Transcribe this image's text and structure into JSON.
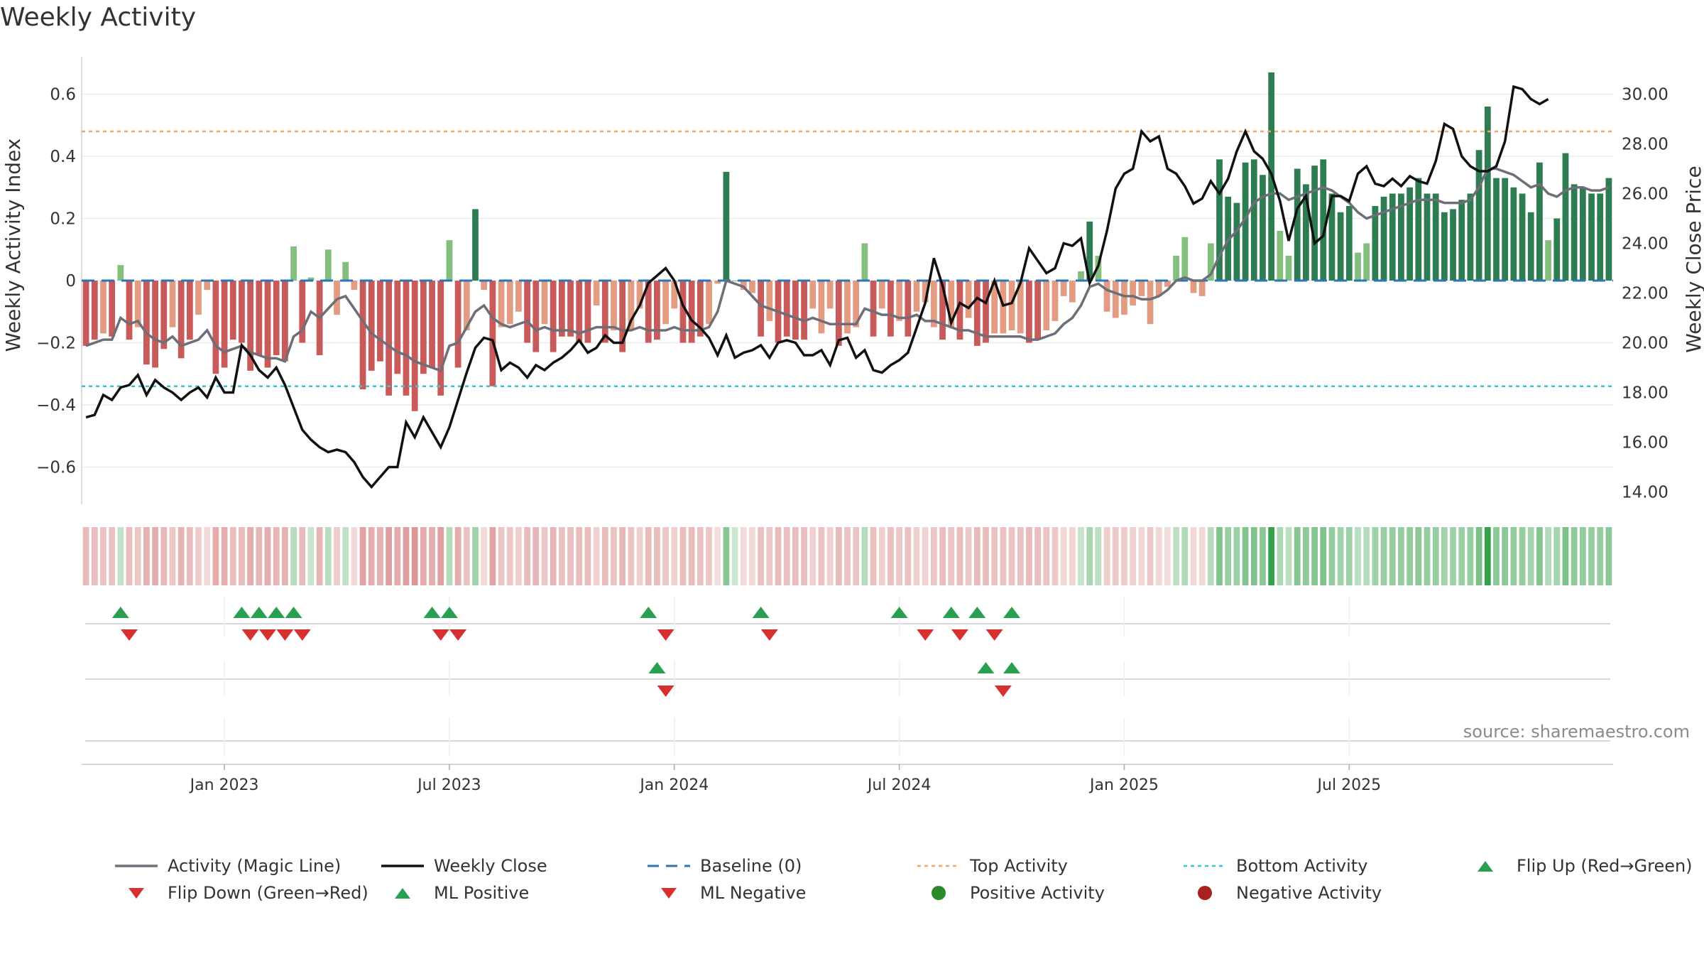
{
  "title": "Weekly Activity",
  "source": "source: sharemaestro.com",
  "colors": {
    "pos_dark": "#2e7d52",
    "pos_light": "#84bf7e",
    "neg_dark": "#c85a5a",
    "neg_light": "#e39b82",
    "magic": "#6e6e78",
    "close": "#111111",
    "baseline": "#2a74b8",
    "top": "#f0a868",
    "bottom": "#36c5d6",
    "up": "#28a050",
    "down": "#d63030",
    "pos_dot": "#2a8a2a",
    "neg_dot": "#a82020"
  },
  "chart_data": {
    "type": "bar",
    "title": "Weekly Activity",
    "ylabel": "Weekly Activity Index",
    "y2label": "Weekly Close Price",
    "ylim": [
      -0.72,
      0.72
    ],
    "y2lim": [
      13.5,
      31.5
    ],
    "yticks": [
      0.6,
      0.4,
      0.2,
      0,
      -0.2,
      -0.4,
      -0.6
    ],
    "yticklabels": [
      "0.6",
      "0.4",
      "0.2",
      "0",
      "−0.2",
      "−0.4",
      "−0.6"
    ],
    "y2ticks": [
      30,
      28,
      26,
      24,
      22,
      20,
      18,
      16,
      14
    ],
    "y2ticklabels": [
      "30.00",
      "28.00",
      "26.00",
      "24.00",
      "22.00",
      "20.00",
      "18.00",
      "16.00",
      "14.00"
    ],
    "xticks": [
      {
        "week": 16,
        "label": "Jan 2023"
      },
      {
        "week": 42,
        "label": "Jul 2023"
      },
      {
        "week": 68,
        "label": "Jan 2024"
      },
      {
        "week": 94,
        "label": "Jul 2024"
      },
      {
        "week": 120,
        "label": "Jan 2025"
      },
      {
        "week": 146,
        "label": "Jul 2025"
      }
    ],
    "top_activity": 0.48,
    "bottom_activity": -0.34,
    "baseline": 0,
    "activity": [
      -0.21,
      -0.19,
      -0.17,
      -0.18,
      0.05,
      -0.19,
      -0.15,
      -0.27,
      -0.28,
      -0.22,
      -0.15,
      -0.25,
      -0.19,
      -0.11,
      -0.03,
      -0.3,
      -0.28,
      -0.19,
      -0.2,
      -0.29,
      -0.24,
      -0.28,
      -0.24,
      -0.26,
      0.11,
      -0.2,
      0.01,
      -0.24,
      0.1,
      -0.11,
      0.06,
      -0.03,
      -0.35,
      -0.29,
      -0.26,
      -0.37,
      -0.3,
      -0.37,
      -0.42,
      -0.3,
      -0.28,
      -0.37,
      0.13,
      -0.28,
      -0.16,
      0.23,
      -0.03,
      -0.34,
      -0.15,
      -0.14,
      -0.1,
      -0.2,
      -0.23,
      -0.14,
      -0.23,
      -0.18,
      -0.18,
      -0.2,
      -0.2,
      -0.08,
      -0.2,
      -0.16,
      -0.23,
      -0.16,
      -0.09,
      -0.2,
      -0.19,
      -0.14,
      -0.09,
      -0.2,
      -0.2,
      -0.18,
      -0.14,
      -0.01,
      0.35,
      0.0,
      -0.03,
      -0.04,
      -0.18,
      -0.13,
      -0.2,
      -0.18,
      -0.19,
      -0.19,
      -0.09,
      -0.17,
      -0.09,
      -0.21,
      -0.17,
      -0.15,
      0.12,
      -0.18,
      -0.09,
      -0.18,
      -0.13,
      -0.18,
      -0.1,
      -0.07,
      -0.15,
      -0.19,
      -0.15,
      -0.19,
      -0.12,
      -0.21,
      -0.2,
      -0.17,
      -0.17,
      -0.16,
      -0.17,
      -0.2,
      -0.19,
      -0.16,
      -0.13,
      -0.05,
      -0.07,
      0.03,
      0.19,
      0.08,
      -0.1,
      -0.12,
      -0.11,
      -0.08,
      -0.05,
      -0.14,
      -0.05,
      -0.02,
      0.08,
      0.14,
      -0.04,
      -0.05,
      0.12,
      0.39,
      0.27,
      0.25,
      0.38,
      0.39,
      0.34,
      0.67,
      0.16,
      0.08,
      0.36,
      0.31,
      0.37,
      0.39,
      0.28,
      0.22,
      0.24,
      0.09,
      0.12,
      0.24,
      0.27,
      0.28,
      0.28,
      0.3,
      0.33,
      0.28,
      0.28,
      0.22,
      0.23,
      0.26,
      0.28,
      0.42,
      0.56,
      0.33,
      0.33,
      0.3,
      0.28,
      0.22,
      0.38,
      0.13,
      0.2,
      0.41,
      0.31,
      0.3,
      0.28,
      0.28,
      0.33
    ],
    "magic_line": [
      -0.21,
      -0.2,
      -0.19,
      -0.19,
      -0.12,
      -0.14,
      -0.13,
      -0.17,
      -0.19,
      -0.2,
      -0.18,
      -0.21,
      -0.2,
      -0.19,
      -0.16,
      -0.21,
      -0.23,
      -0.22,
      -0.21,
      -0.23,
      -0.24,
      -0.25,
      -0.25,
      -0.26,
      -0.18,
      -0.16,
      -0.1,
      -0.12,
      -0.09,
      -0.06,
      -0.05,
      -0.09,
      -0.13,
      -0.17,
      -0.19,
      -0.21,
      -0.23,
      -0.24,
      -0.26,
      -0.27,
      -0.28,
      -0.29,
      -0.21,
      -0.2,
      -0.15,
      -0.1,
      -0.08,
      -0.12,
      -0.14,
      -0.15,
      -0.14,
      -0.13,
      -0.16,
      -0.15,
      -0.16,
      -0.16,
      -0.16,
      -0.17,
      -0.16,
      -0.15,
      -0.15,
      -0.15,
      -0.16,
      -0.16,
      -0.15,
      -0.16,
      -0.16,
      -0.16,
      -0.15,
      -0.16,
      -0.16,
      -0.16,
      -0.15,
      -0.1,
      0.0,
      -0.01,
      -0.02,
      -0.05,
      -0.08,
      -0.09,
      -0.1,
      -0.11,
      -0.12,
      -0.13,
      -0.12,
      -0.13,
      -0.14,
      -0.14,
      -0.14,
      -0.14,
      -0.09,
      -0.1,
      -0.11,
      -0.11,
      -0.12,
      -0.12,
      -0.11,
      -0.13,
      -0.13,
      -0.14,
      -0.15,
      -0.16,
      -0.16,
      -0.17,
      -0.18,
      -0.18,
      -0.18,
      -0.18,
      -0.18,
      -0.19,
      -0.19,
      -0.18,
      -0.17,
      -0.14,
      -0.12,
      -0.08,
      -0.02,
      -0.01,
      -0.03,
      -0.04,
      -0.05,
      -0.05,
      -0.06,
      -0.06,
      -0.05,
      -0.03,
      0.0,
      0.01,
      0.0,
      0.0,
      0.02,
      0.08,
      0.13,
      0.16,
      0.2,
      0.25,
      0.27,
      0.28,
      0.28,
      0.26,
      0.27,
      0.28,
      0.29,
      0.3,
      0.29,
      0.27,
      0.25,
      0.22,
      0.2,
      0.21,
      0.22,
      0.23,
      0.24,
      0.25,
      0.26,
      0.26,
      0.26,
      0.25,
      0.25,
      0.25,
      0.26,
      0.3,
      0.36,
      0.36,
      0.35,
      0.34,
      0.32,
      0.3,
      0.31,
      0.28,
      0.27,
      0.29,
      0.3,
      0.3,
      0.29,
      0.29,
      0.3
    ],
    "weekly_close": [
      17.0,
      17.1,
      17.9,
      17.7,
      18.2,
      18.3,
      18.7,
      17.9,
      18.5,
      18.2,
      18.0,
      17.7,
      18.0,
      18.2,
      17.8,
      18.6,
      18.0,
      18.0,
      19.9,
      19.5,
      18.9,
      18.6,
      19.0,
      18.3,
      17.4,
      16.5,
      16.1,
      15.8,
      15.6,
      15.7,
      15.6,
      15.2,
      14.6,
      14.2,
      14.6,
      15.0,
      15.0,
      16.8,
      16.2,
      17.0,
      16.4,
      15.8,
      16.6,
      17.7,
      18.8,
      19.8,
      20.2,
      20.1,
      18.9,
      19.2,
      19.0,
      18.6,
      19.1,
      18.9,
      19.2,
      19.4,
      19.7,
      20.1,
      19.6,
      19.8,
      20.3,
      20.0,
      20.0,
      20.9,
      21.5,
      22.4,
      22.7,
      23.0,
      22.5,
      21.5,
      20.9,
      20.6,
      20.2,
      19.5,
      20.3,
      19.4,
      19.6,
      19.7,
      19.9,
      19.4,
      20.0,
      20.1,
      20.0,
      19.5,
      19.5,
      19.7,
      19.1,
      20.1,
      20.2,
      19.4,
      19.7,
      18.9,
      18.8,
      19.1,
      19.3,
      19.6,
      20.6,
      21.6,
      23.4,
      22.3,
      20.8,
      21.6,
      21.4,
      21.8,
      21.6,
      22.5,
      21.5,
      21.6,
      22.4,
      23.8,
      23.3,
      22.8,
      23.0,
      24.0,
      23.9,
      24.2,
      22.4,
      23.1,
      24.5,
      26.2,
      26.8,
      27.0,
      28.5,
      28.1,
      28.3,
      27.0,
      26.8,
      26.3,
      25.6,
      25.8,
      26.5,
      26.0,
      26.6,
      27.7,
      28.5,
      27.7,
      27.4,
      26.8,
      25.7,
      24.1,
      25.4,
      25.9,
      24.0,
      24.3,
      25.9,
      25.9,
      25.7,
      26.8,
      27.1,
      26.4,
      26.3,
      26.6,
      26.3,
      26.7,
      26.5,
      26.4,
      27.3,
      28.8,
      28.6,
      27.5,
      27.1,
      26.9,
      26.9,
      27.1,
      28.1,
      30.3,
      30.2,
      29.8,
      29.6,
      29.8
    ],
    "flip_up_weeks": [
      4,
      18,
      20,
      22,
      24,
      40,
      42,
      65,
      78,
      94,
      100,
      103,
      107
    ],
    "flip_down_weeks": [
      5,
      19,
      21,
      23,
      25,
      41,
      43,
      67,
      79,
      97,
      101,
      105
    ],
    "ml_positive_weeks": [
      66,
      104,
      107
    ],
    "ml_negative_weeks": [
      67,
      106
    ],
    "legend": [
      {
        "label": "Activity (Magic Line)",
        "kind": "line",
        "color": "#6e6e78"
      },
      {
        "label": "Weekly Close",
        "kind": "line",
        "color": "#111111"
      },
      {
        "label": "Baseline (0)",
        "kind": "dash",
        "color": "#2a74b8"
      },
      {
        "label": "Top Activity",
        "kind": "dot-line",
        "color": "#f0a868"
      },
      {
        "label": "Bottom Activity",
        "kind": "dot-line",
        "color": "#36c5d6"
      },
      {
        "label": "Flip Up (Red→Green)",
        "kind": "up",
        "color": "#28a050"
      },
      {
        "label": "Flip Down (Green→Red)",
        "kind": "down",
        "color": "#d63030"
      },
      {
        "label": "ML Positive",
        "kind": "up",
        "color": "#28a050"
      },
      {
        "label": "ML Negative",
        "kind": "down",
        "color": "#d63030"
      },
      {
        "label": "Positive Activity",
        "kind": "circle",
        "color": "#2a8a2a"
      },
      {
        "label": "Negative Activity",
        "kind": "circle",
        "color": "#a82020"
      }
    ]
  }
}
